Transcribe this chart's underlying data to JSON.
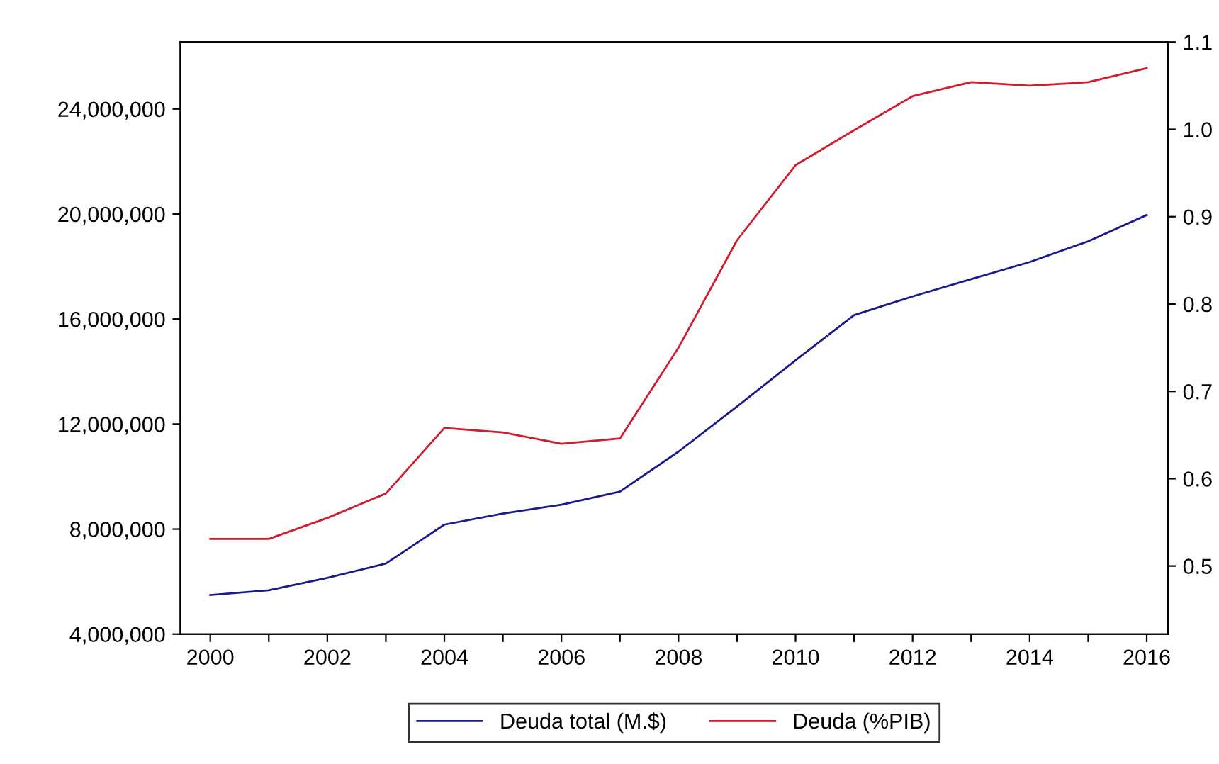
{
  "chart_data": {
    "type": "line",
    "x": [
      2000,
      2001,
      2002,
      2003,
      2004,
      2005,
      2006,
      2007,
      2008,
      2009,
      2010,
      2011,
      2012,
      2013,
      2014,
      2015,
      2016
    ],
    "series": [
      {
        "name": "Deuda total (M.$)",
        "color": "#1a1a8c",
        "values": [
          5490000,
          5670000,
          6140000,
          6690000,
          8170000,
          8590000,
          8930000,
          9430000,
          10950000,
          12670000,
          14430000,
          16150000,
          16860000,
          17520000,
          18170000,
          18960000,
          19960000
        ]
      },
      {
        "name": "Deuda (%PIB)",
        "color": "#d01c2c",
        "axis": "y2",
        "values": [
          0.531,
          0.531,
          0.555,
          0.583,
          0.658,
          0.653,
          0.64,
          0.646,
          0.75,
          0.873,
          0.959,
          0.999,
          1.038,
          1.054,
          1.05,
          1.054,
          1.07
        ]
      }
    ],
    "xlim": [
      1999.49,
      2016.36
    ],
    "xticks": [
      2000,
      {
        "value": 2001,
        "label": null
      },
      2002,
      {
        "value": 2003,
        "label": null
      },
      2004,
      {
        "value": 2005,
        "label": null
      },
      2006,
      {
        "value": 2007,
        "label": null
      },
      2008,
      {
        "value": 2009,
        "label": null
      },
      2010,
      {
        "value": 2011,
        "label": null
      },
      2012,
      {
        "value": 2013,
        "label": null
      },
      2014,
      {
        "value": 2015,
        "label": null
      },
      2016
    ],
    "ylim": [
      4000000,
      26550000
    ],
    "yticks": [
      {
        "value": 4000000,
        "label": "4,000,000"
      },
      {
        "value": 8000000,
        "label": "8,000,000"
      },
      {
        "value": 12000000,
        "label": "12,000,000"
      },
      {
        "value": 16000000,
        "label": "16,000,000"
      },
      {
        "value": 20000000,
        "label": "20,000,000"
      },
      {
        "value": 24000000,
        "label": "24,000,000"
      }
    ],
    "y2lim": [
      0.422,
      1.1
    ],
    "y2ticks": [
      0.5,
      0.6,
      0.7,
      0.8,
      0.9,
      {
        "value": 1.0,
        "label": "1.0"
      },
      1.1
    ],
    "grid": false,
    "legend": "bottom"
  }
}
